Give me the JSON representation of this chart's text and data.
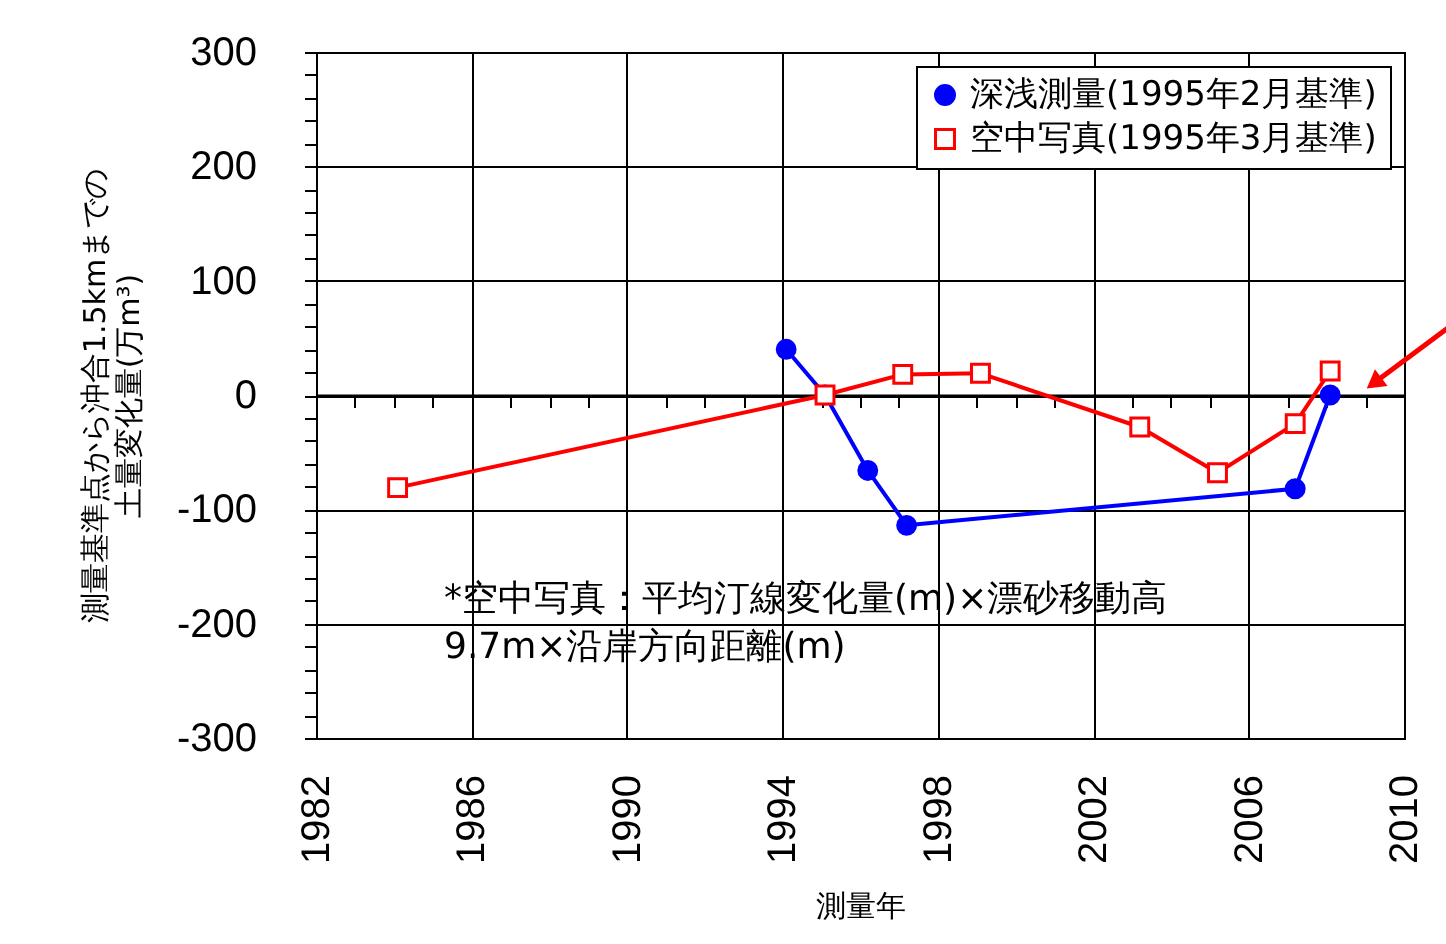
{
  "chart_data": {
    "type": "line",
    "xlabel": "測量年",
    "ylabel": "測量基準点から沖合1.5kmまでの土量変化量(万m³)",
    "xlim": [
      1982,
      2010
    ],
    "xticks": [
      1982,
      {
        "value": 1983,
        "label": null
      },
      {
        "value": 1984,
        "label": null
      },
      {
        "value": 1985,
        "label": null
      },
      1986,
      {
        "value": 1987,
        "label": null
      },
      {
        "value": 1988,
        "label": null
      },
      {
        "value": 1989,
        "label": null
      },
      1990,
      {
        "value": 1991,
        "label": null
      },
      {
        "value": 1992,
        "label": null
      },
      {
        "value": 1993,
        "label": null
      },
      1994,
      {
        "value": 1995,
        "label": null
      },
      {
        "value": 1996,
        "label": null
      },
      {
        "value": 1997,
        "label": null
      },
      1998,
      {
        "value": 1999,
        "label": null
      },
      {
        "value": 2000,
        "label": null
      },
      {
        "value": 2001,
        "label": null
      },
      2002,
      {
        "value": 2003,
        "label": null
      },
      {
        "value": 2004,
        "label": null
      },
      {
        "value": 2005,
        "label": null
      },
      2006,
      {
        "value": 2007,
        "label": null
      },
      {
        "value": 2008,
        "label": null
      },
      {
        "value": 2009,
        "label": null
      },
      2010
    ],
    "ylim": [
      -300,
      300
    ],
    "yticks": [
      -300,
      {
        "value": -280,
        "label": null
      },
      {
        "value": -260,
        "label": null
      },
      {
        "value": -240,
        "label": null
      },
      {
        "value": -220,
        "label": null
      },
      -200,
      {
        "value": -180,
        "label": null
      },
      {
        "value": -160,
        "label": null
      },
      {
        "value": -140,
        "label": null
      },
      {
        "value": -120,
        "label": null
      },
      -100,
      {
        "value": -80,
        "label": null
      },
      {
        "value": -60,
        "label": null
      },
      {
        "value": -40,
        "label": null
      },
      {
        "value": -20,
        "label": null
      },
      0,
      {
        "value": 20,
        "label": null
      },
      {
        "value": 40,
        "label": null
      },
      {
        "value": 60,
        "label": null
      },
      {
        "value": 80,
        "label": null
      },
      100,
      {
        "value": 120,
        "label": null
      },
      {
        "value": 140,
        "label": null
      },
      {
        "value": 160,
        "label": null
      },
      {
        "value": 180,
        "label": null
      },
      200,
      {
        "value": 220,
        "label": null
      },
      {
        "value": 240,
        "label": null
      },
      {
        "value": 260,
        "label": null
      },
      {
        "value": 280,
        "label": null
      },
      300
    ],
    "grid": true,
    "legend": "top right",
    "ref_lines": [
      {
        "axis": "y",
        "value": 0,
        "color": "#000000"
      }
    ],
    "series": [
      {
        "name": "深浅測量(1995年2月基準)",
        "color": "#0000ff",
        "marker": "circle",
        "x": [
          1994.1,
          1995.1,
          1996.2,
          1997.2,
          2007.2,
          2008.1
        ],
        "values": [
          40,
          0,
          -66,
          -114,
          -82,
          0
        ]
      },
      {
        "name": "空中写真(1995年3月基準)",
        "color": "#ff0000",
        "marker": "square",
        "x": [
          1984.1,
          1995.1,
          1997.1,
          1999.1,
          2003.2,
          2005.2,
          2007.2,
          2008.1
        ],
        "values": [
          -81,
          0,
          18,
          19,
          -28,
          -68,
          -25,
          21
        ]
      }
    ],
    "annotations": [
      "*空中写真：平均汀線変化量(m)×漂砂移動高9.7m×沿岸方向距離(m)"
    ]
  }
}
